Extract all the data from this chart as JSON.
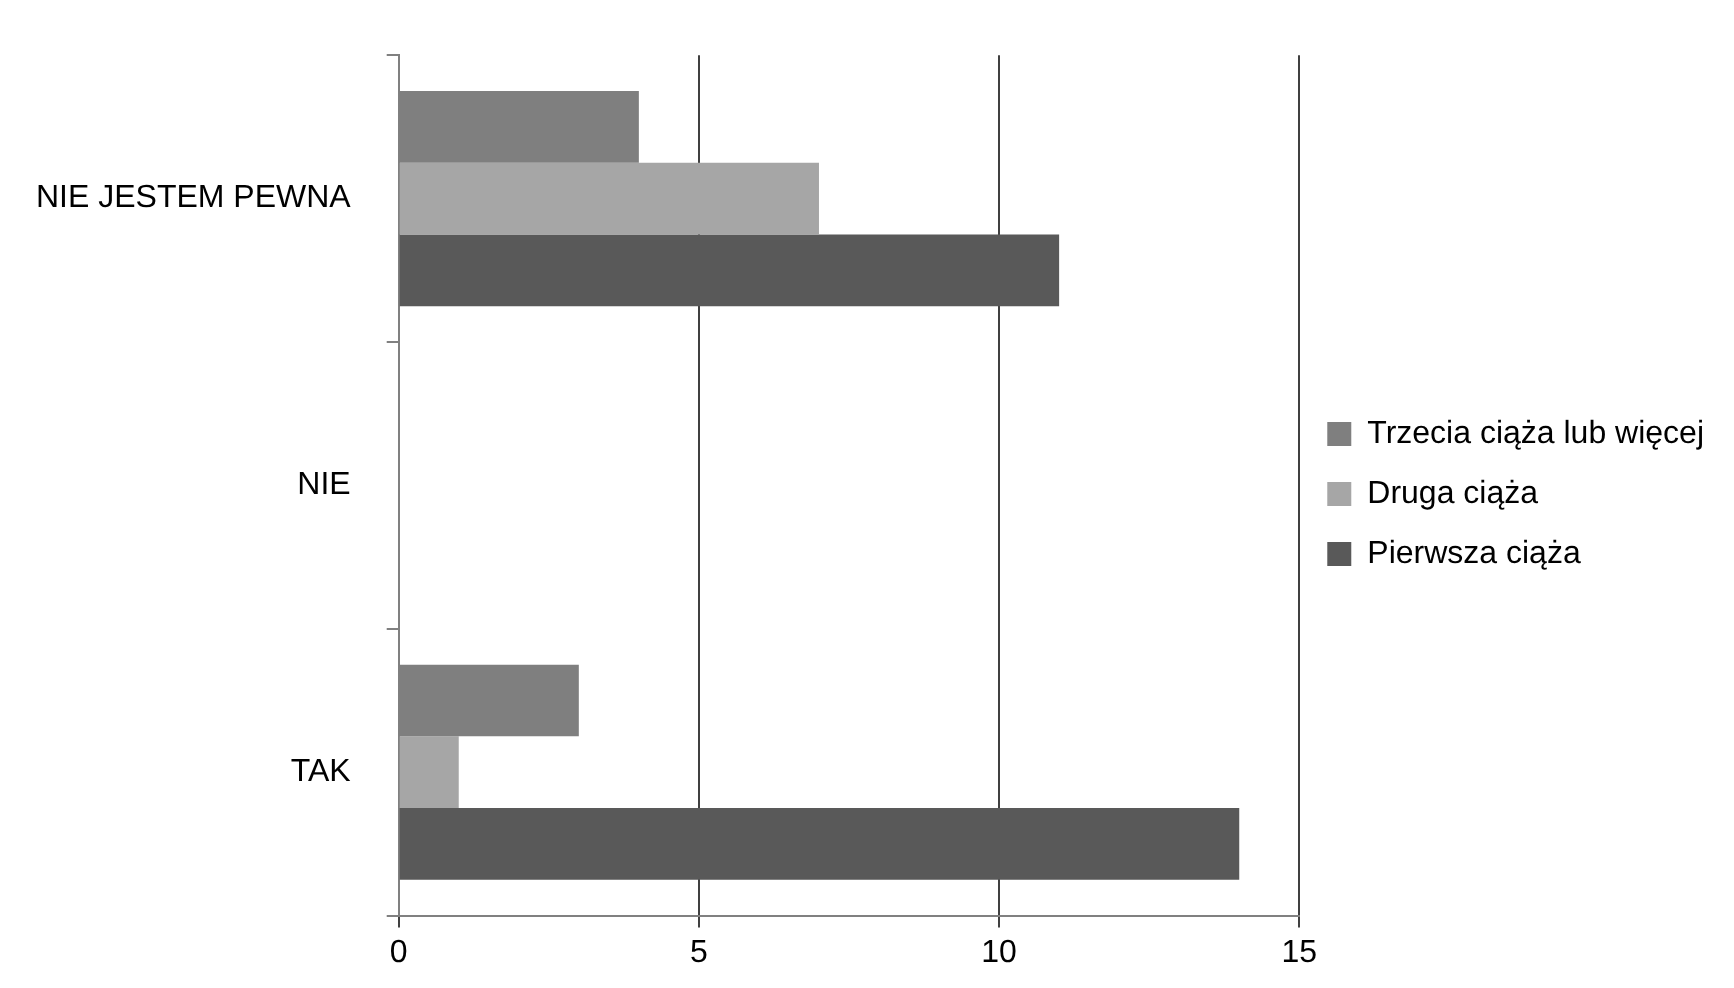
{
  "chart_data": {
    "type": "bar",
    "orientation": "horizontal",
    "categories": [
      "NIE JESTEM PEWNA",
      "NIE",
      "TAK"
    ],
    "series": [
      {
        "name": "Trzecia ciąża lub więcej",
        "color": "#7f7f7f",
        "values": [
          4,
          0,
          3
        ]
      },
      {
        "name": "Druga ciąża",
        "color": "#a6a6a6",
        "values": [
          7,
          0,
          1
        ]
      },
      {
        "name": "Pierwsza ciąża",
        "color": "#595959",
        "values": [
          11,
          0,
          14
        ]
      }
    ],
    "xlim": [
      0,
      15
    ],
    "xticks": [
      0,
      5,
      10,
      15
    ],
    "grid": "x",
    "legend": "right"
  }
}
